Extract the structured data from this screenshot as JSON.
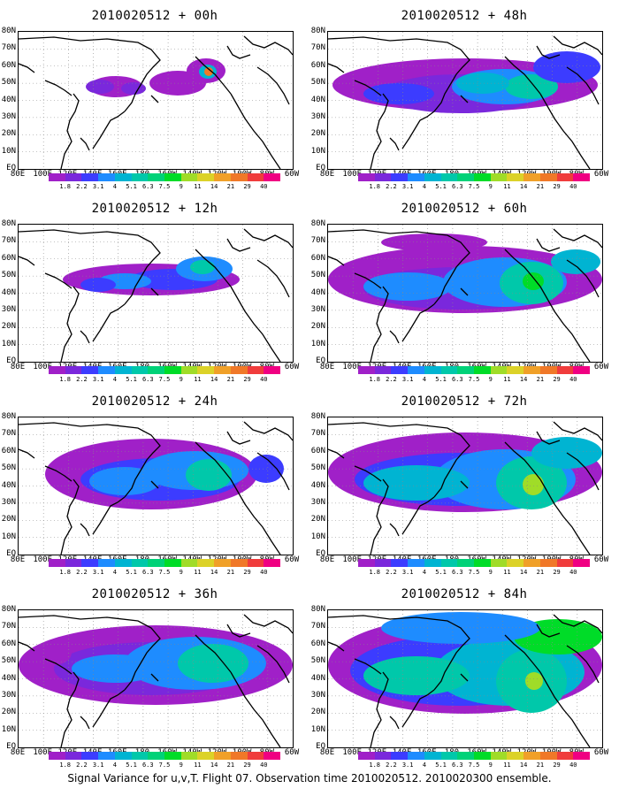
{
  "panels": [
    {
      "title": "2010020512 + 00h",
      "lead_hours": 0
    },
    {
      "title": "2010020512 + 48h",
      "lead_hours": 48
    },
    {
      "title": "2010020512 + 12h",
      "lead_hours": 12
    },
    {
      "title": "2010020512 + 60h",
      "lead_hours": 60
    },
    {
      "title": "2010020512 + 24h",
      "lead_hours": 24
    },
    {
      "title": "2010020512 + 72h",
      "lead_hours": 72
    },
    {
      "title": "2010020512 + 36h",
      "lead_hours": 36
    },
    {
      "title": "2010020512 + 84h",
      "lead_hours": 84
    }
  ],
  "longitude_labels": [
    "80E",
    "100E",
    "120E",
    "140E",
    "160E",
    "180",
    "160W",
    "140W",
    "120W",
    "100W",
    "80W",
    "60W"
  ],
  "latitude_labels": [
    "80N",
    "70N",
    "60N",
    "50N",
    "40N",
    "30N",
    "20N",
    "10N",
    "EQ"
  ],
  "colorbar": {
    "labels": [
      "1.8",
      "2.2",
      "3.1",
      "4",
      "5.1",
      "6.3",
      "7.5",
      "9",
      "11",
      "14",
      "21",
      "29",
      "40"
    ],
    "colors": [
      "#a020c8",
      "#7a28dc",
      "#3c3cff",
      "#1e8cff",
      "#00b4d2",
      "#00c8aa",
      "#00d278",
      "#00dc28",
      "#a0dc28",
      "#dcd228",
      "#f0a028",
      "#f07828",
      "#f03c3c",
      "#f00082"
    ]
  },
  "caption": "Signal Variance for u,v,T. Flight 07. Observation time 2010020512. 2010020300 ensemble."
}
